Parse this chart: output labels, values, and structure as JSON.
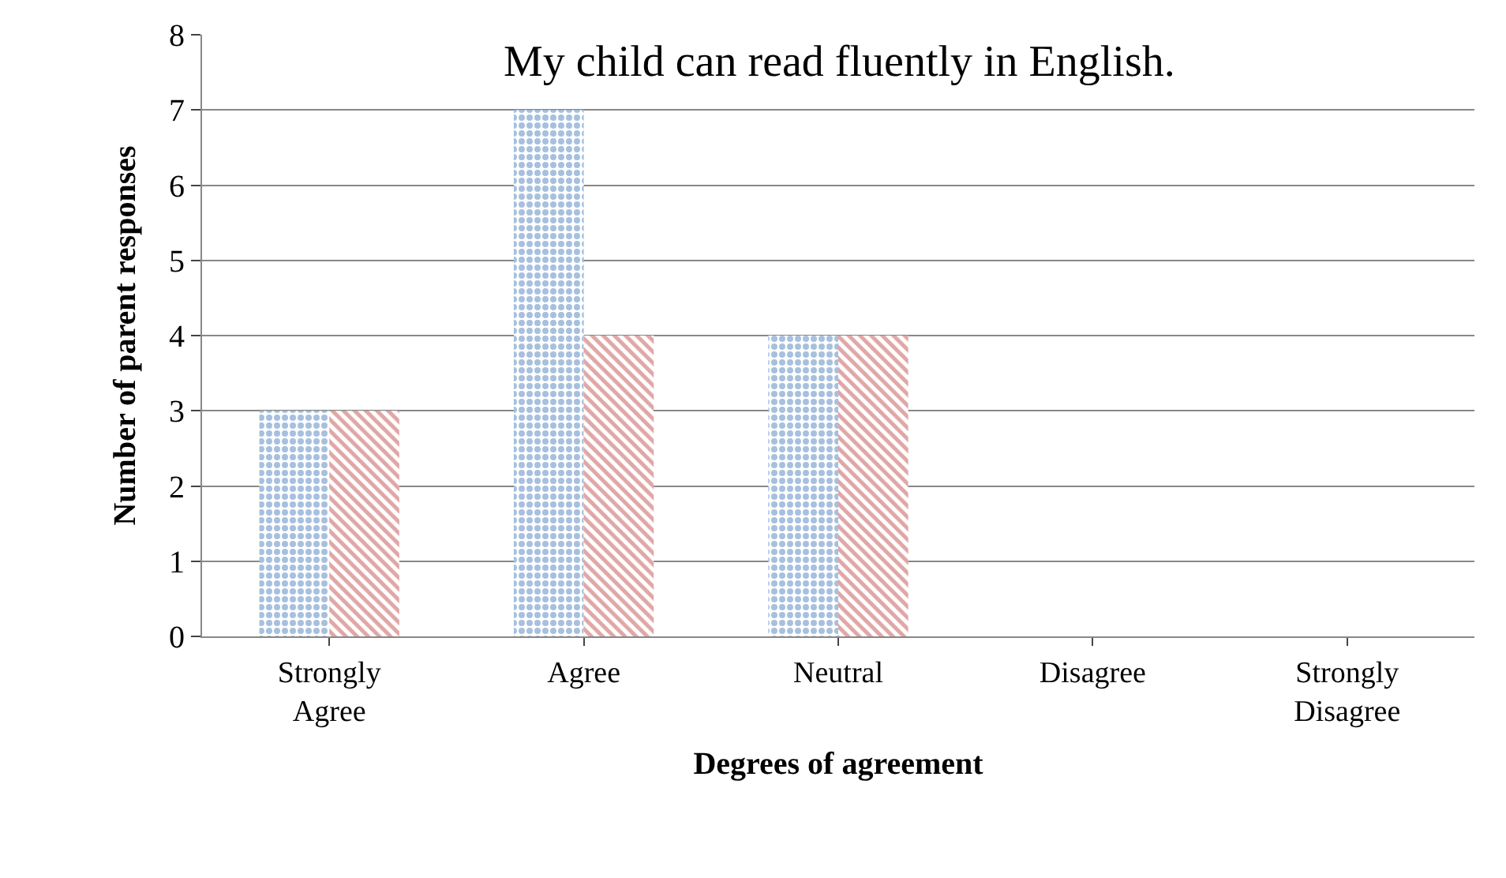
{
  "chart_data": {
    "type": "bar",
    "title": "My child can read fluently in English.",
    "xlabel": "Degrees of agreement",
    "ylabel": "Number of parent responses",
    "categories": [
      "Strongly Agree",
      "Agree",
      "Neutral",
      "Disagree",
      "Strongly Disagree"
    ],
    "series": [
      {
        "color": "#4f81bd",
        "values": [
          3,
          7,
          4,
          0,
          0
        ]
      },
      {
        "color": "#c0504d",
        "values": [
          3,
          4,
          4,
          0,
          0
        ]
      }
    ],
    "ylim": [
      0,
      8
    ],
    "yticks": [
      0,
      1,
      2,
      3,
      4,
      5,
      6,
      7,
      8
    ],
    "grid": "y"
  }
}
